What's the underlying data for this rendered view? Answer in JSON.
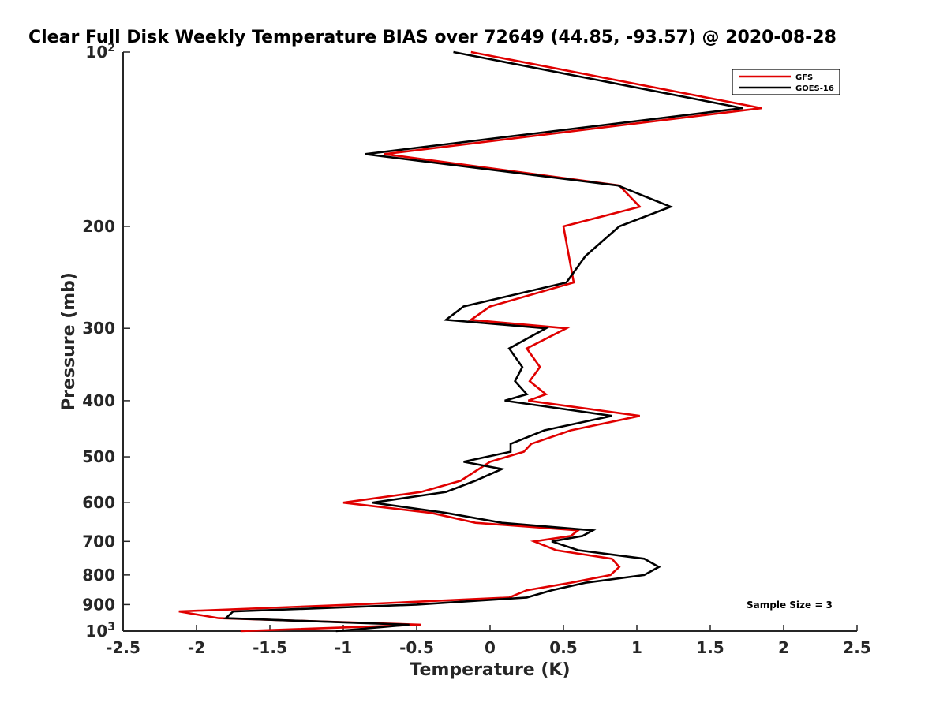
{
  "chart_data": {
    "type": "line",
    "title": "Clear Full Disk Weekly Temperature BIAS over 72649 (44.85, -93.57) @ 2020-08-28",
    "xlabel": "Temperature (K)",
    "ylabel": "Pressure (mb)",
    "xlim": [
      -2.5,
      2.5
    ],
    "ylim": [
      100,
      1000
    ],
    "y_scale": "log",
    "y_reversed": true,
    "grid": false,
    "legend_position": "top-right",
    "x_ticks": [
      "-2.5",
      "-2",
      "-1.5",
      "-1",
      "-0.5",
      "0",
      "0.5",
      "1",
      "1.5",
      "2",
      "2.5"
    ],
    "y_ticks": [
      {
        "value": 100,
        "base": "10",
        "exp": "2"
      },
      {
        "value": 200,
        "label": "200"
      },
      {
        "value": 300,
        "label": "300"
      },
      {
        "value": 400,
        "label": "400"
      },
      {
        "value": 500,
        "label": "500"
      },
      {
        "value": 600,
        "label": "600"
      },
      {
        "value": 700,
        "label": "700"
      },
      {
        "value": 800,
        "label": "800"
      },
      {
        "value": 900,
        "label": "900"
      },
      {
        "value": 1000,
        "base": "10",
        "exp": "3"
      }
    ],
    "annotation": "Sample Size = 3",
    "series": [
      {
        "name": "GFS",
        "color": "#e00000",
        "points": [
          {
            "p": 100,
            "t": -0.13
          },
          {
            "p": 125,
            "t": 1.85
          },
          {
            "p": 150,
            "t": -0.72
          },
          {
            "p": 170,
            "t": 0.88
          },
          {
            "p": 185,
            "t": 1.02
          },
          {
            "p": 200,
            "t": 0.5
          },
          {
            "p": 250,
            "t": 0.57
          },
          {
            "p": 275,
            "t": 0.0
          },
          {
            "p": 290,
            "t": -0.13
          },
          {
            "p": 300,
            "t": 0.52
          },
          {
            "p": 325,
            "t": 0.25
          },
          {
            "p": 350,
            "t": 0.34
          },
          {
            "p": 370,
            "t": 0.27
          },
          {
            "p": 390,
            "t": 0.38
          },
          {
            "p": 400,
            "t": 0.26
          },
          {
            "p": 425,
            "t": 1.02
          },
          {
            "p": 450,
            "t": 0.55
          },
          {
            "p": 475,
            "t": 0.28
          },
          {
            "p": 490,
            "t": 0.23
          },
          {
            "p": 510,
            "t": 0.0
          },
          {
            "p": 550,
            "t": -0.2
          },
          {
            "p": 575,
            "t": -0.47
          },
          {
            "p": 600,
            "t": -1.0
          },
          {
            "p": 625,
            "t": -0.4
          },
          {
            "p": 650,
            "t": -0.1
          },
          {
            "p": 670,
            "t": 0.6
          },
          {
            "p": 685,
            "t": 0.55
          },
          {
            "p": 700,
            "t": 0.3
          },
          {
            "p": 725,
            "t": 0.45
          },
          {
            "p": 750,
            "t": 0.83
          },
          {
            "p": 775,
            "t": 0.88
          },
          {
            "p": 800,
            "t": 0.82
          },
          {
            "p": 825,
            "t": 0.55
          },
          {
            "p": 850,
            "t": 0.25
          },
          {
            "p": 875,
            "t": 0.13
          },
          {
            "p": 900,
            "t": -0.93
          },
          {
            "p": 925,
            "t": -2.12
          },
          {
            "p": 950,
            "t": -1.85
          },
          {
            "p": 975,
            "t": -0.47
          },
          {
            "p": 1000,
            "t": -1.7
          }
        ]
      },
      {
        "name": "GOES-16",
        "color": "#000000",
        "points": [
          {
            "p": 100,
            "t": -0.25
          },
          {
            "p": 125,
            "t": 1.72
          },
          {
            "p": 150,
            "t": -0.85
          },
          {
            "p": 170,
            "t": 0.87
          },
          {
            "p": 185,
            "t": 1.23
          },
          {
            "p": 200,
            "t": 0.88
          },
          {
            "p": 225,
            "t": 0.65
          },
          {
            "p": 250,
            "t": 0.52
          },
          {
            "p": 275,
            "t": -0.18
          },
          {
            "p": 290,
            "t": -0.3
          },
          {
            "p": 300,
            "t": 0.38
          },
          {
            "p": 325,
            "t": 0.13
          },
          {
            "p": 350,
            "t": 0.22
          },
          {
            "p": 370,
            "t": 0.17
          },
          {
            "p": 390,
            "t": 0.25
          },
          {
            "p": 400,
            "t": 0.1
          },
          {
            "p": 425,
            "t": 0.83
          },
          {
            "p": 450,
            "t": 0.37
          },
          {
            "p": 475,
            "t": 0.14
          },
          {
            "p": 490,
            "t": 0.14
          },
          {
            "p": 510,
            "t": -0.18
          },
          {
            "p": 525,
            "t": 0.08
          },
          {
            "p": 550,
            "t": -0.1
          },
          {
            "p": 575,
            "t": -0.3
          },
          {
            "p": 600,
            "t": -0.8
          },
          {
            "p": 625,
            "t": -0.3
          },
          {
            "p": 650,
            "t": 0.08
          },
          {
            "p": 670,
            "t": 0.7
          },
          {
            "p": 685,
            "t": 0.63
          },
          {
            "p": 700,
            "t": 0.42
          },
          {
            "p": 725,
            "t": 0.6
          },
          {
            "p": 750,
            "t": 1.05
          },
          {
            "p": 775,
            "t": 1.15
          },
          {
            "p": 800,
            "t": 1.05
          },
          {
            "p": 825,
            "t": 0.65
          },
          {
            "p": 850,
            "t": 0.42
          },
          {
            "p": 875,
            "t": 0.25
          },
          {
            "p": 900,
            "t": -0.5
          },
          {
            "p": 925,
            "t": -1.75
          },
          {
            "p": 950,
            "t": -1.8
          },
          {
            "p": 975,
            "t": -0.55
          },
          {
            "p": 1000,
            "t": -1.05
          }
        ]
      }
    ]
  }
}
